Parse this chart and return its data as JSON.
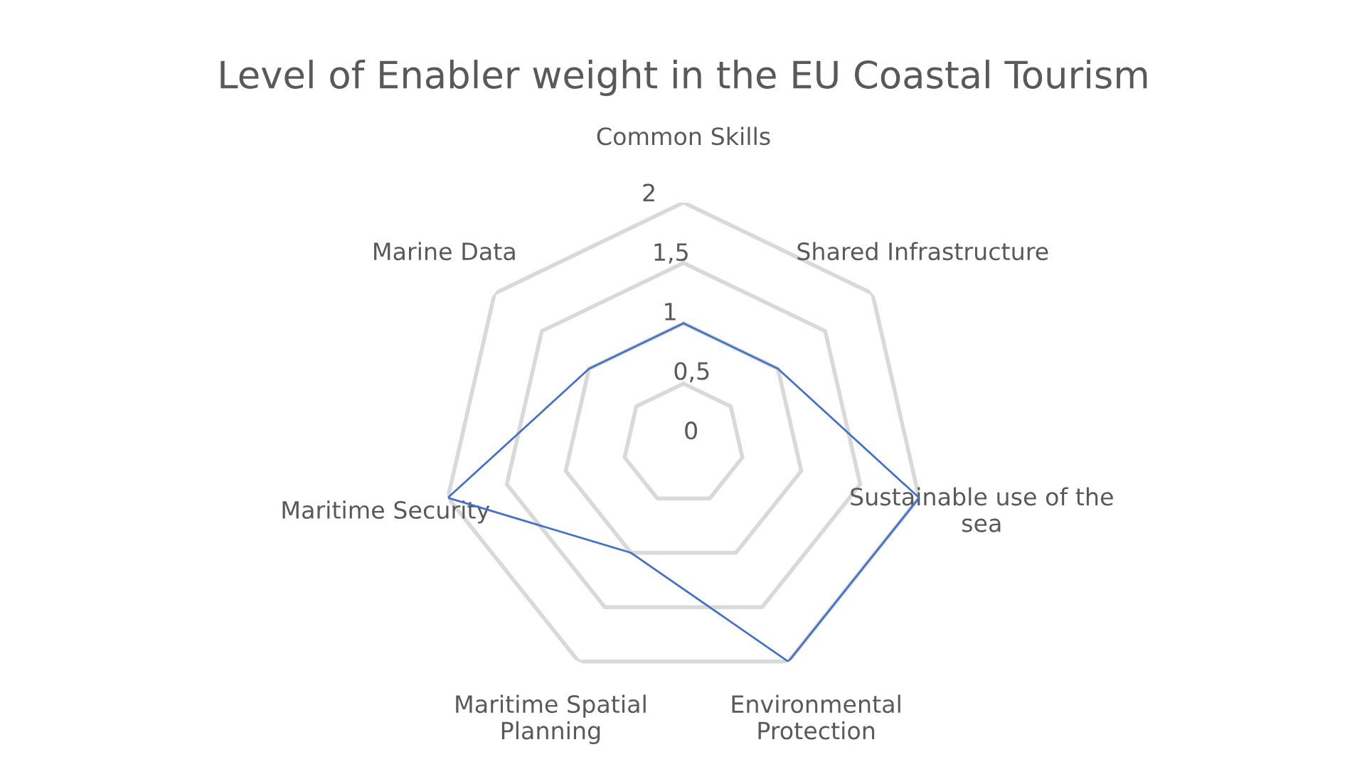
{
  "chart_data": {
    "type": "radar",
    "title": "Level of Enabler weight in the EU Coastal Tourism",
    "categories": [
      "Common Skills",
      "Shared Infrastructure",
      "Sustainable use of the sea",
      "Environmental Protection",
      "Maritime Spatial Planning",
      "Maritime Security",
      "Marine Data"
    ],
    "series": [
      {
        "color": "#4472c4",
        "values": [
          1,
          1,
          2,
          2,
          1,
          2,
          1
        ]
      }
    ],
    "ylim": [
      0,
      2
    ],
    "yticks": [
      0,
      {
        "value": 0.5,
        "label": "0,5"
      },
      1,
      {
        "value": 1.5,
        "label": "1,5"
      },
      2
    ],
    "grid": true,
    "marker": "none",
    "legend": false
  }
}
